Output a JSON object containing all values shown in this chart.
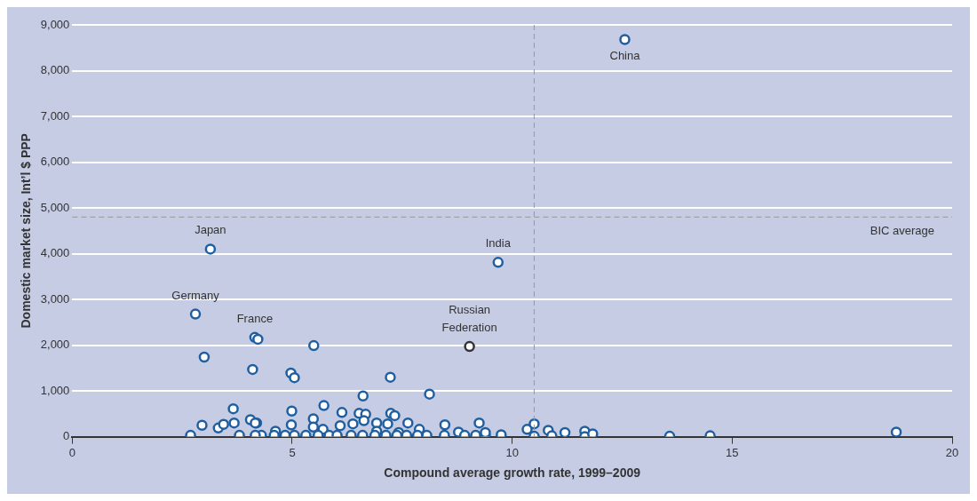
{
  "chart_data": {
    "type": "scatter",
    "xlabel": "Compound average growth rate, 1999–2009",
    "ylabel": "Domestic market size, Int’l $ PPP",
    "xlim": [
      0,
      20
    ],
    "xticks": [
      0,
      5,
      10,
      15,
      20
    ],
    "ylim": [
      0,
      9000
    ],
    "yticks": [
      0,
      {
        "value": 1000,
        "label": "1,000"
      },
      {
        "value": 2000,
        "label": "2,000"
      },
      {
        "value": 3000,
        "label": "3,000"
      },
      {
        "value": 4000,
        "label": "4,000"
      },
      {
        "value": 5000,
        "label": "5,000"
      },
      {
        "value": 6000,
        "label": "6,000"
      },
      {
        "value": 7000,
        "label": "7,000"
      },
      {
        "value": 8000,
        "label": "8,000"
      },
      {
        "value": 9000,
        "label": "9,000"
      }
    ],
    "grid": "y",
    "legend": false,
    "marker": "circle",
    "series": [
      {
        "color": "#1f5fa0",
        "x": [
          12.56,
          3.14,
          9.68,
          2.8,
          4.15,
          4.22,
          3.0,
          4.1,
          5.49,
          4.97,
          5.05,
          7.23,
          6.61,
          8.12,
          3.66,
          5.72,
          4.99,
          6.13,
          6.52,
          6.67,
          7.24,
          7.33,
          5.48,
          4.19,
          4.98,
          5.48,
          6.09,
          6.38,
          6.63,
          6.92,
          7.17,
          7.63,
          7.89,
          8.47,
          9.25,
          8.78,
          4.62,
          5.7,
          6.92,
          7.42,
          4.3,
          4.59,
          4.84,
          5.05,
          5.31,
          5.59,
          5.84,
          6.02,
          6.34,
          6.6,
          6.88,
          7.13,
          7.38,
          7.6,
          7.85,
          8.06,
          8.46,
          8.92,
          9.17,
          9.39,
          9.75,
          2.69,
          3.8,
          4.16,
          2.95,
          3.32,
          3.44,
          3.68,
          4.05,
          4.16,
          9.39,
          10.34,
          10.5,
          10.5,
          10.82,
          10.9,
          11.2,
          11.65,
          11.65,
          11.83,
          13.58,
          14.5,
          18.73
        ],
        "values": [
          8680,
          4100,
          3810,
          2680,
          2170,
          2130,
          1740,
          1470,
          1990,
          1390,
          1290,
          1300,
          890,
          930,
          610,
          680,
          560,
          530,
          510,
          490,
          510,
          460,
          390,
          300,
          260,
          210,
          240,
          280,
          350,
          300,
          280,
          300,
          160,
          260,
          300,
          100,
          120,
          160,
          120,
          90,
          30,
          30,
          30,
          30,
          30,
          30,
          30,
          30,
          30,
          30,
          30,
          30,
          30,
          30,
          30,
          30,
          30,
          30,
          30,
          30,
          40,
          30,
          30,
          30,
          250,
          190,
          270,
          300,
          370,
          300,
          90,
          160,
          280,
          10,
          140,
          20,
          90,
          120,
          0,
          60,
          10,
          20,
          100
        ]
      },
      {
        "color": "#333333",
        "x": [
          9.03
        ],
        "values": [
          1970
        ]
      }
    ],
    "ref_lines": [
      {
        "axis": "y",
        "value": 4800,
        "label": "BIC average",
        "color": "#999999",
        "line_style": "dashed"
      },
      {
        "axis": "x",
        "value": 10.5,
        "label": null,
        "color": "#999999",
        "line_style": "dashed"
      }
    ],
    "annotations": [
      {
        "text": "China",
        "x": 12.56,
        "y": 8680
      },
      {
        "text": "Japan",
        "x": 3.14,
        "y": 4100
      },
      {
        "text": "India",
        "x": 9.68,
        "y": 3810
      },
      {
        "text": "Germany",
        "x": 2.8,
        "y": 2680
      },
      {
        "text": "France",
        "x": 4.15,
        "y": 2170
      },
      {
        "text": "Russian Federation",
        "x": 9.03,
        "y": 1970
      }
    ]
  }
}
